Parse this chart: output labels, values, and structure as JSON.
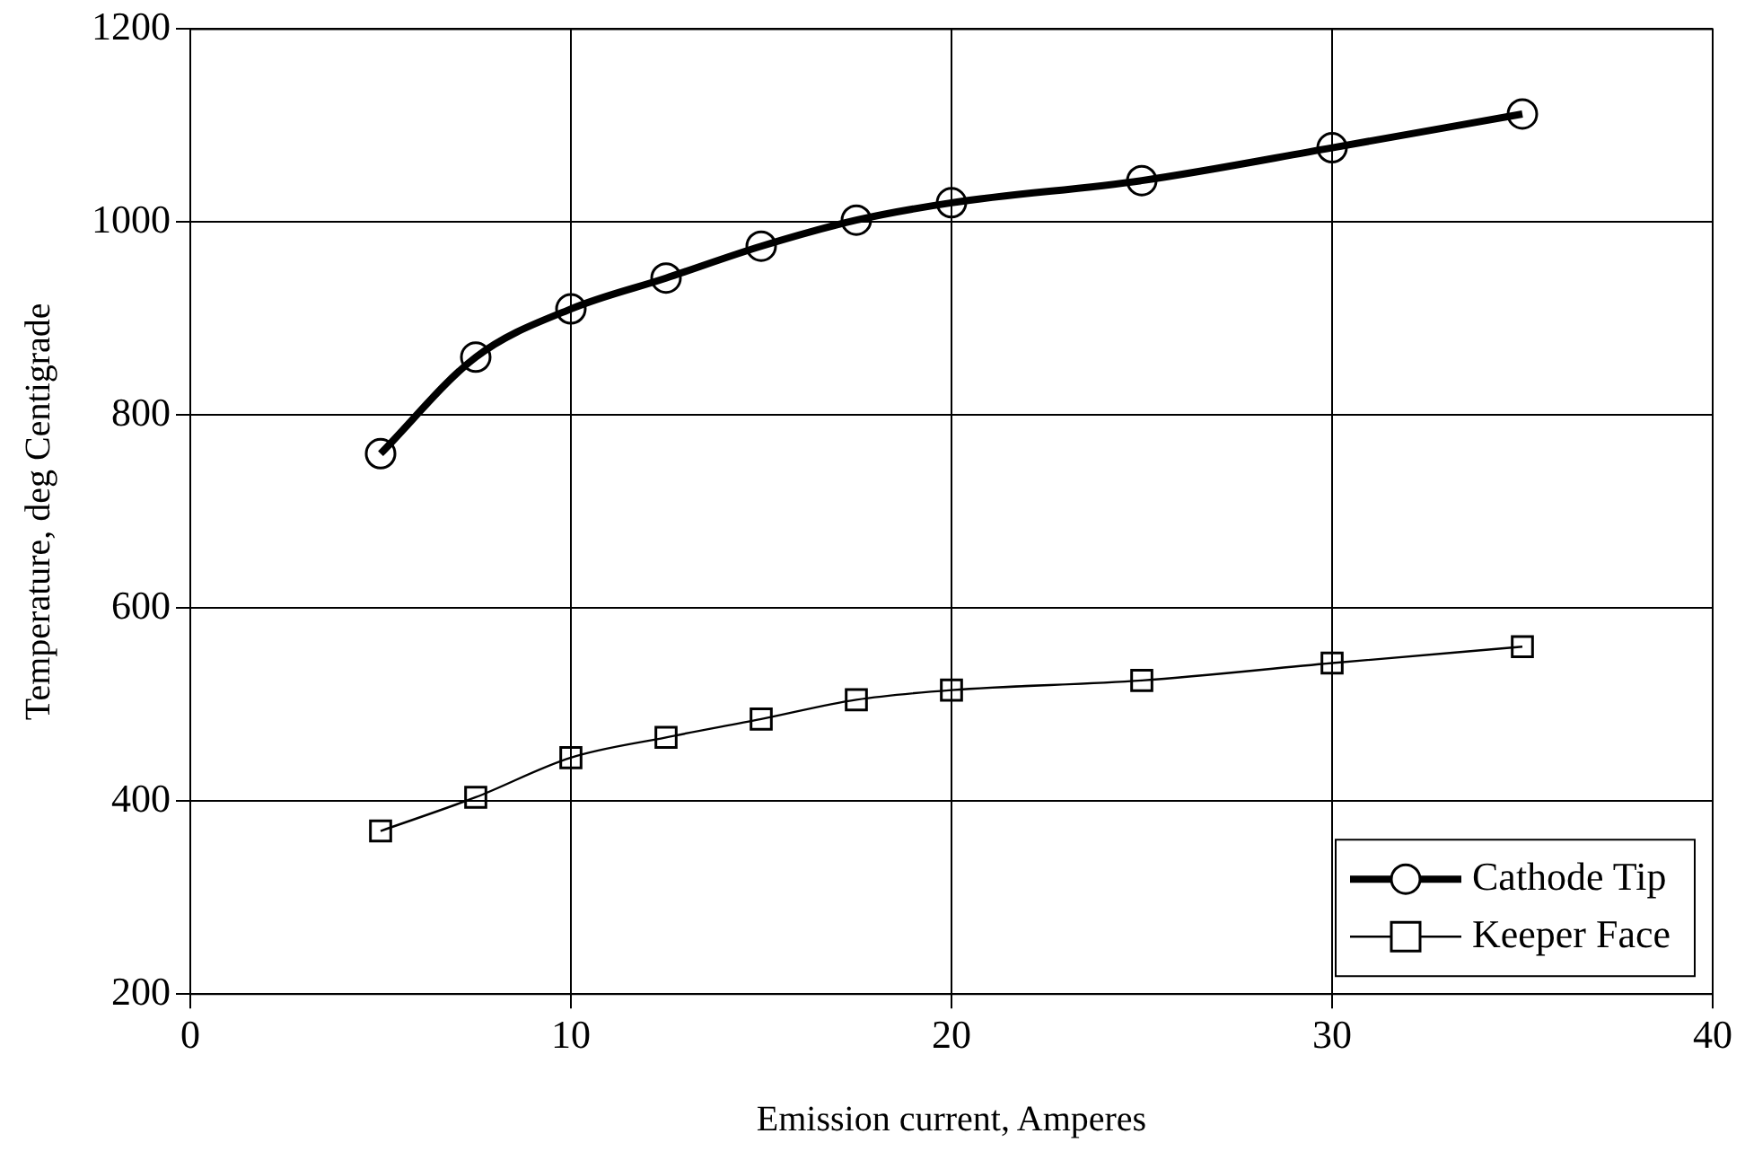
{
  "chart_data": {
    "type": "line",
    "xlabel": "Emission current, Amperes",
    "ylabel": "Temperature, deg Centigrade",
    "x": [
      5,
      7.5,
      10,
      12.5,
      15,
      17.5,
      20,
      25,
      30,
      35
    ],
    "series": [
      {
        "name": "Cathode Tip",
        "color": "#000000",
        "marker": "circle",
        "values": [
          760,
          860,
          910,
          942,
          975,
          1002,
          1020,
          1043,
          1077,
          1112
        ]
      },
      {
        "name": "Keeper Face",
        "color": "#000000",
        "marker": "square",
        "values": [
          369,
          404,
          445,
          466,
          485,
          505,
          515,
          525,
          543,
          560
        ]
      }
    ],
    "xlim": [
      0,
      40
    ],
    "xticks": [
      0,
      10,
      20,
      30,
      40
    ],
    "ylim": [
      200,
      1200
    ],
    "yticks": [
      200,
      400,
      600,
      800,
      1000,
      1200
    ],
    "grid": true,
    "legend": "bottom right",
    "line_style": "solid"
  }
}
